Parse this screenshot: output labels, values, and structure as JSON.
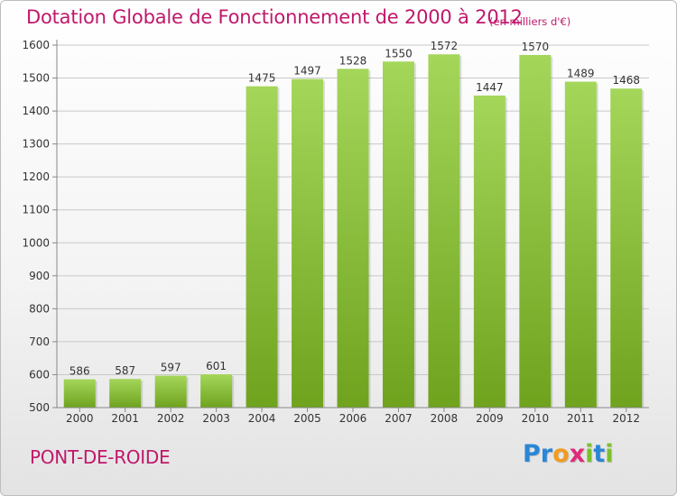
{
  "header": {
    "title": "Dotation Globale de Fonctionnement de 2000 à 2012",
    "unit_note": "(en milliers d'€)"
  },
  "commune": "PONT-DE-ROIDE",
  "logo": {
    "text": "Proxiti",
    "letters": [
      "P",
      "r",
      "o",
      "x",
      "i",
      "t",
      "i"
    ]
  },
  "colors": {
    "title": "#c0186b",
    "bar_light": "#a4d65a",
    "bar_dark": "#6fa31e",
    "grid": "#c8c8c8",
    "axis_text": "#333333"
  },
  "chart_data": {
    "type": "bar",
    "title": "Dotation Globale de Fonctionnement de 2000 à 2012",
    "xlabel": "",
    "ylabel": "en milliers d'€",
    "categories": [
      "2000",
      "2001",
      "2002",
      "2003",
      "2004",
      "2005",
      "2006",
      "2007",
      "2008",
      "2009",
      "2010",
      "2011",
      "2012"
    ],
    "values": [
      586,
      587,
      597,
      601,
      1475,
      1497,
      1528,
      1550,
      1572,
      1447,
      1570,
      1489,
      1468
    ],
    "ylim": [
      500,
      1600
    ],
    "yticks": [
      500,
      600,
      700,
      800,
      900,
      1000,
      1100,
      1200,
      1300,
      1400,
      1500,
      1600
    ],
    "grid": true,
    "legend": "none"
  }
}
